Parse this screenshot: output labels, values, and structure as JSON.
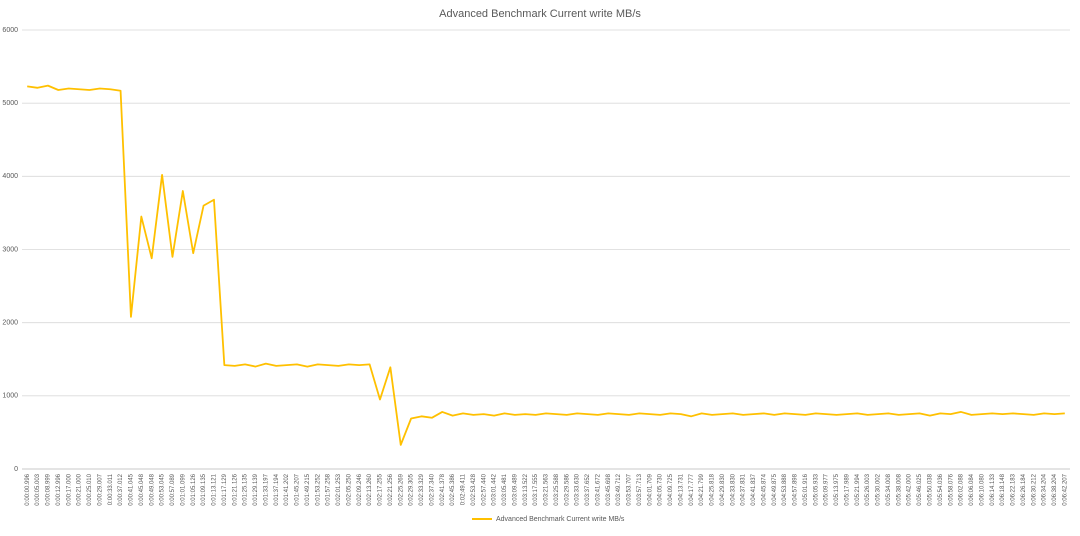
{
  "chart_data": {
    "type": "line",
    "title": "Advanced Benchmark Current write MB/s",
    "categories": [
      "0:00:00.996",
      "0:00:05.003",
      "0:00:08.999",
      "0:00:12.996",
      "0:00:17.000",
      "0:00:21.000",
      "0:00:25.010",
      "0:00:29.007",
      "0:00:33.011",
      "0:00:37.012",
      "0:00:41.045",
      "0:00:45.048",
      "0:00:49.048",
      "0:00:53.045",
      "0:00:57.089",
      "0:01:01.099",
      "0:01:05.126",
      "0:01:09.135",
      "0:01:13.121",
      "0:01:17.129",
      "0:01:21.126",
      "0:01:25.135",
      "0:01:29.139",
      "0:01:33.197",
      "0:01:37.194",
      "0:01:41.202",
      "0:01:45.207",
      "0:01:49.215",
      "0:01:53.252",
      "0:01:57.258",
      "0:02:01.253",
      "0:02:05.250",
      "0:02:09.246",
      "0:02:13.260",
      "0:02:17.255",
      "0:02:21.256",
      "0:02:25.269",
      "0:02:29.305",
      "0:02:33.329",
      "0:02:37.340",
      "0:02:41.378",
      "0:02:45.386",
      "0:02:49.411",
      "0:02:53.428",
      "0:02:57.440",
      "0:03:01.442",
      "0:03:05.481",
      "0:03:09.489",
      "0:03:13.522",
      "0:03:17.555",
      "0:03:21.563",
      "0:03:25.588",
      "0:03:29.586",
      "0:03:33.630",
      "0:03:37.652",
      "0:03:41.672",
      "0:03:45.698",
      "0:03:49.712",
      "0:03:53.707",
      "0:03:57.713",
      "0:04:01.709",
      "0:04:05.730",
      "0:04:09.725",
      "0:04:13.731",
      "0:04:17.777",
      "0:04:21.799",
      "0:04:25.818",
      "0:04:29.830",
      "0:04:33.830",
      "0:04:37.831",
      "0:04:41.837",
      "0:04:45.874",
      "0:04:49.875",
      "0:04:53.888",
      "0:04:57.898",
      "0:05:01.916",
      "0:05:05.933",
      "0:05:09.977",
      "0:05:13.975",
      "0:05:17.989",
      "0:05:21.994",
      "0:05:26.003",
      "0:05:30.002",
      "0:05:34.008",
      "0:05:38.008",
      "0:05:42.000",
      "0:05:46.025",
      "0:05:50.038",
      "0:05:54.036",
      "0:05:58.076",
      "0:06:02.088",
      "0:06:06.084",
      "0:06:10.080",
      "0:06:14.133",
      "0:06:18.148",
      "0:06:22.183",
      "0:06:26.184",
      "0:06:30.212",
      "0:06:34.204",
      "0:06:38.204",
      "0:06:42.207"
    ],
    "series": [
      {
        "name": "Advanced Benchmark Current write MB/s",
        "color": "#ffc000",
        "values": [
          5230,
          5210,
          5240,
          5180,
          5200,
          5190,
          5180,
          5200,
          5190,
          5170,
          2080,
          3450,
          2880,
          4020,
          2900,
          3800,
          2950,
          3600,
          3680,
          1420,
          1410,
          1430,
          1400,
          1440,
          1410,
          1420,
          1430,
          1400,
          1430,
          1420,
          1410,
          1430,
          1420,
          1430,
          950,
          1390,
          330,
          690,
          720,
          700,
          780,
          730,
          760,
          740,
          750,
          730,
          760,
          740,
          750,
          740,
          760,
          750,
          740,
          760,
          750,
          740,
          760,
          750,
          740,
          760,
          750,
          740,
          760,
          750,
          720,
          760,
          740,
          750,
          760,
          740,
          750,
          760,
          740,
          760,
          750,
          740,
          760,
          750,
          740,
          750,
          760,
          740,
          750,
          760,
          740,
          750,
          760,
          730,
          760,
          750,
          780,
          740,
          750,
          760,
          750,
          760,
          750,
          740,
          760,
          750,
          760
        ]
      }
    ],
    "ylim": [
      0,
      6000
    ],
    "yticks": [
      0,
      1000,
      2000,
      3000,
      4000,
      5000,
      6000
    ],
    "grid": true
  }
}
